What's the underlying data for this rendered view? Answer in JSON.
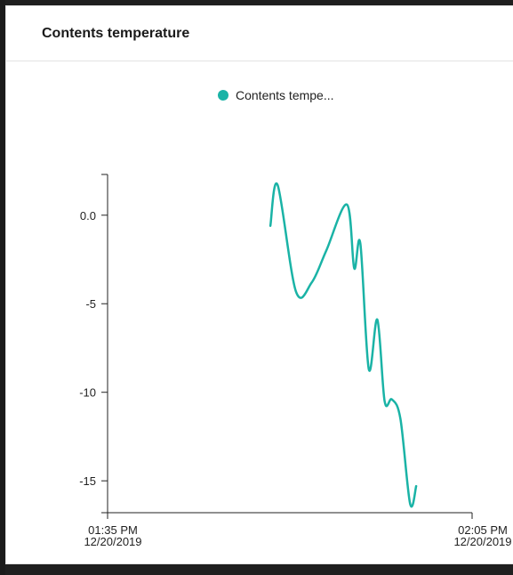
{
  "card": {
    "title": "Contents temperature"
  },
  "legend": {
    "label": "Contents tempe..."
  },
  "chart_data": {
    "type": "line",
    "title": "",
    "xlabel": "",
    "ylabel": "",
    "xlim": [
      "2019-12-20 13:35",
      "2019-12-20 14:05"
    ],
    "ylim": [
      -16.8,
      2.3
    ],
    "grid": false,
    "legend_position": "top",
    "x_ticks": [
      {
        "line1": "01:35 PM",
        "line2": "12/20/2019"
      },
      {
        "line1": "02:05 PM",
        "line2": "12/20/2019"
      }
    ],
    "y_ticks": [
      {
        "value": 0,
        "label": "0.0"
      },
      {
        "value": -5,
        "label": "-5"
      },
      {
        "value": -10,
        "label": "-10"
      },
      {
        "value": -15,
        "label": "-15"
      }
    ],
    "series": [
      {
        "name": "Contents tempe...",
        "color": "#1ab3a6",
        "points": [
          {
            "x": "2019-12-20 13:48:24",
            "y": -0.6
          },
          {
            "x": "2019-12-20 13:49:00",
            "y": 1.7
          },
          {
            "x": "2019-12-20 13:50:30",
            "y": -4.3
          },
          {
            "x": "2019-12-20 13:51:48",
            "y": -3.8
          },
          {
            "x": "2019-12-20 13:53:00",
            "y": -2.0
          },
          {
            "x": "2019-12-20 13:54:42",
            "y": 0.6
          },
          {
            "x": "2019-12-20 13:55:18",
            "y": -3.0
          },
          {
            "x": "2019-12-20 13:55:48",
            "y": -1.6
          },
          {
            "x": "2019-12-20 13:56:30",
            "y": -8.7
          },
          {
            "x": "2019-12-20 13:57:12",
            "y": -5.9
          },
          {
            "x": "2019-12-20 13:57:48",
            "y": -10.5
          },
          {
            "x": "2019-12-20 13:58:24",
            "y": -10.4
          },
          {
            "x": "2019-12-20 13:59:06",
            "y": -11.5
          },
          {
            "x": "2019-12-20 13:59:54",
            "y": -16.3
          },
          {
            "x": "2019-12-20 14:00:24",
            "y": -15.3
          }
        ]
      }
    ]
  }
}
